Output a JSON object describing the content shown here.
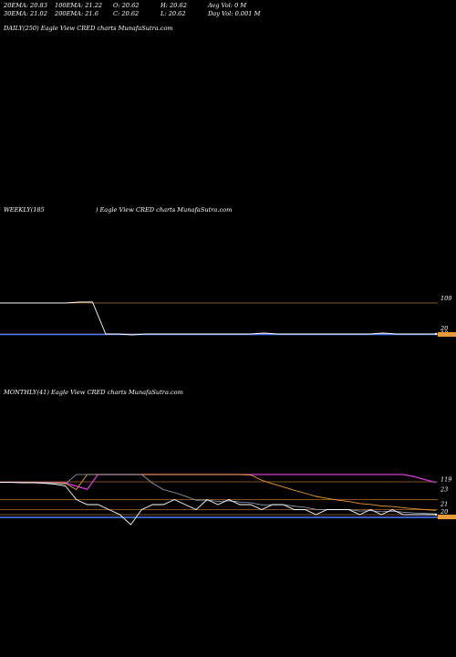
{
  "stats": {
    "row1": [
      "20EMA: 20.83",
      "100EMA: 21.22",
      "O: 20.62",
      "H: 20.62",
      "Avg Vol: 0  M"
    ],
    "row2": [
      "30EMA: 21.02",
      "200EMA: 21.6",
      "C: 20.62",
      "L: 20.62",
      "Day Vol: 0.001 M"
    ]
  },
  "panels": {
    "daily": {
      "title": "DAILY(250) Eagle   View  CRED charts MunafaSutra.com"
    },
    "weekly": {
      "title_left": "WEEKLY(185",
      "title_right": ") Eagle   View  CRED charts MunafaSutra.com"
    },
    "monthly": {
      "title": "MONTHLY(41) Eagle   View  CRED charts MunafaSutra.com"
    }
  },
  "colors": {
    "background": "#000000",
    "level_line": "#b06a2a",
    "price": "#ffffff",
    "ema_blue": "#4a7bff",
    "ema_magenta": "#d23bd2",
    "ema_orange": "#e89a3a"
  },
  "chart_data": [
    {
      "type": "line",
      "title": "WEEKLY(185) Eagle View CRED charts MunafaSutra.com",
      "y_tick_labels": [
        "109",
        "20",
        "19"
      ],
      "series": [
        {
          "name": "",
          "values": [
            109,
            109,
            109,
            109,
            109,
            109,
            110,
            110,
            20,
            20,
            19,
            20,
            20,
            20,
            20,
            20,
            20,
            20,
            20,
            20,
            21,
            20,
            20,
            20,
            20,
            20,
            20,
            20,
            20,
            21,
            20,
            20,
            20,
            20
          ]
        }
      ]
    },
    {
      "type": "line",
      "title": "MONTHLY(41) Eagle View CRED charts MunafaSutra.com",
      "y_tick_labels": [
        "119",
        "23",
        "21",
        "20",
        "19"
      ],
      "series": [
        {
          "name": "",
          "values": [
            118,
            118,
            117,
            117,
            116,
            114,
            110,
            23,
            22,
            22,
            21,
            20,
            18,
            21,
            22,
            22,
            23,
            22,
            21,
            23,
            22,
            23,
            22,
            22,
            21,
            22,
            22,
            21,
            21,
            20,
            21,
            21,
            21,
            20,
            21,
            20,
            21,
            20,
            20,
            20,
            20
          ]
        }
      ]
    }
  ]
}
